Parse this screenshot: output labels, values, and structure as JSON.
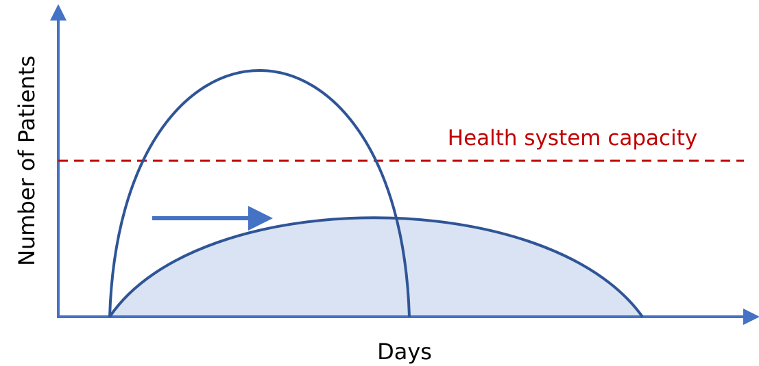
{
  "y_axis_label": "Number of Patients",
  "x_axis_label": "Days",
  "capacity_label": "Health system capacity"
}
